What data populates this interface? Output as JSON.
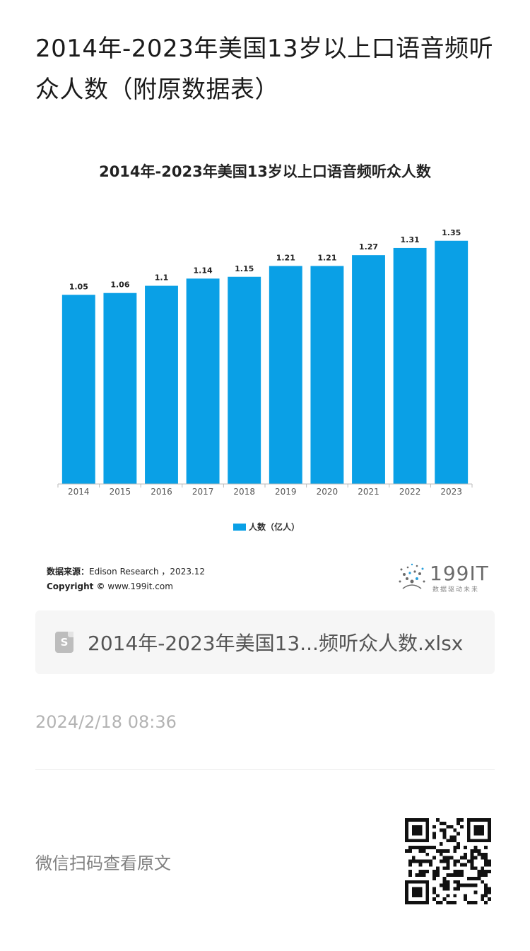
{
  "article": {
    "title": "2014年-2023年美国13岁以上口语音频听众人数（附原数据表）"
  },
  "chart_data": {
    "type": "bar",
    "title": "2014年-2023年美国13岁以上口语音频听众人数",
    "categories": [
      "2014",
      "2015",
      "2016",
      "2017",
      "2018",
      "2019",
      "2020",
      "2021",
      "2022",
      "2023"
    ],
    "series": [
      {
        "name": "人数（亿人）",
        "values": [
          1.05,
          1.06,
          1.1,
          1.14,
          1.15,
          1.21,
          1.21,
          1.27,
          1.31,
          1.35
        ]
      }
    ],
    "data_labels": [
      "1.05",
      "1.06",
      "1.1",
      "1.14",
      "1.15",
      "1.21",
      "1.21",
      "1.27",
      "1.31",
      "1.35"
    ],
    "bar_color": "#0aa0e6",
    "ylim": [
      0,
      1.4
    ],
    "grid": false,
    "legend_position": "bottom"
  },
  "chart_footer": {
    "source_label": "数据来源：",
    "source_value": "Edison Research ，2023.12",
    "copyright_label": "Copyright ©",
    "copyright_value": "www.199it.com",
    "brand_name": "199IT",
    "brand_tagline": "数据驱动未来"
  },
  "attachment": {
    "file_name": "2014年-2023年美国13...频听众人数.xlsx",
    "icon": "spreadsheet-file-icon"
  },
  "timestamp": "2024/2/18 08:36",
  "footer": {
    "scan_text": "微信扫码查看原文"
  }
}
